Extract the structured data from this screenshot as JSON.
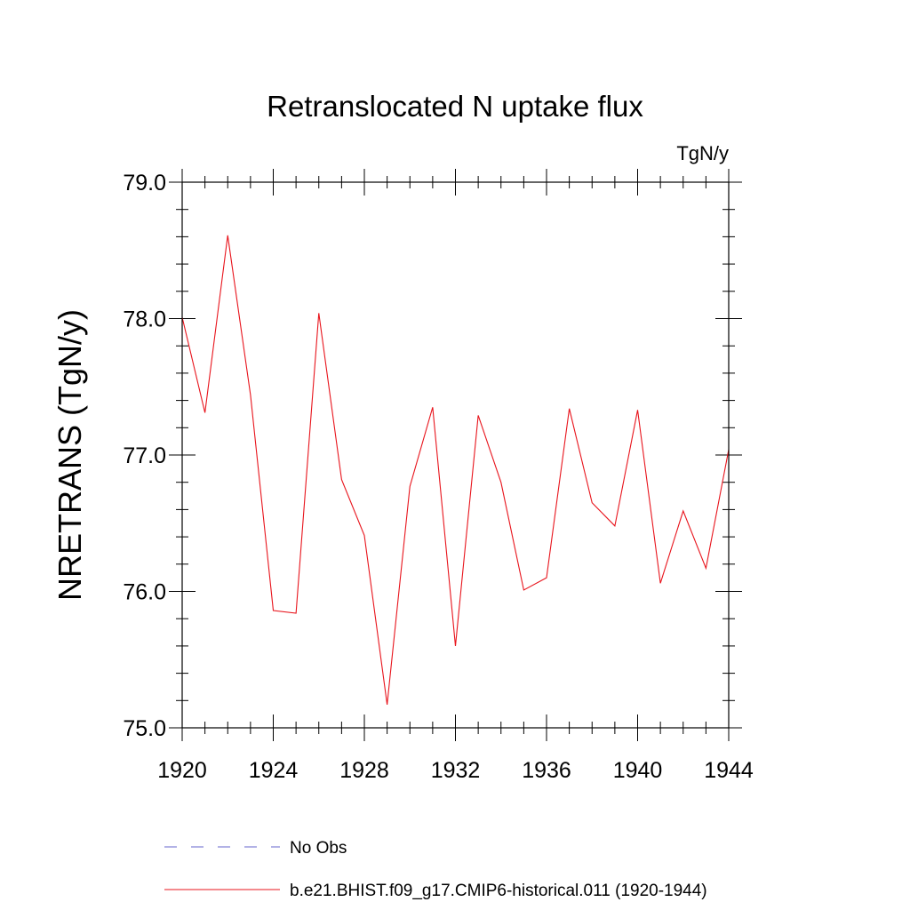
{
  "chart_data": {
    "type": "line",
    "title": "Retranslocated N uptake flux",
    "units": "TgN/y",
    "ylabel": "NRETRANS  (TgN/y)",
    "xlabel": "",
    "xlim": [
      1920,
      1944
    ],
    "ylim": [
      75.0,
      79.0
    ],
    "x_ticks": [
      1920,
      1924,
      1928,
      1932,
      1936,
      1940,
      1944
    ],
    "x_tick_labels": [
      "1920",
      "1924",
      "1928",
      "1932",
      "1936",
      "1940",
      "1944"
    ],
    "y_ticks": [
      75.0,
      76.0,
      77.0,
      78.0,
      79.0
    ],
    "y_tick_labels": [
      "75.0",
      "76.0",
      "77.0",
      "78.0",
      "79.0"
    ],
    "grid": false,
    "legend_position": "bottom",
    "series": [
      {
        "name": "b.e21.BHIST.f09_g17.CMIP6-historical.011 (1920-1944)",
        "color": "#e8141c",
        "style": "solid",
        "x": [
          1920,
          1921,
          1922,
          1923,
          1924,
          1925,
          1926,
          1927,
          1928,
          1929,
          1930,
          1931,
          1932,
          1933,
          1934,
          1935,
          1936,
          1937,
          1938,
          1939,
          1940,
          1941,
          1942,
          1943,
          1944
        ],
        "values": [
          78.01,
          77.31,
          78.61,
          77.44,
          75.86,
          75.84,
          78.04,
          76.82,
          76.41,
          75.17,
          76.77,
          77.35,
          75.6,
          77.29,
          76.8,
          76.01,
          76.1,
          77.34,
          76.65,
          76.48,
          77.33,
          76.06,
          76.59,
          76.17,
          77.04
        ]
      }
    ],
    "legend": [
      {
        "label": "No Obs",
        "color": "#6666cc",
        "style": "dashed"
      },
      {
        "label": "b.e21.BHIST.f09_g17.CMIP6-historical.011 (1920-1944)",
        "color": "#e8141c",
        "style": "solid"
      }
    ]
  }
}
